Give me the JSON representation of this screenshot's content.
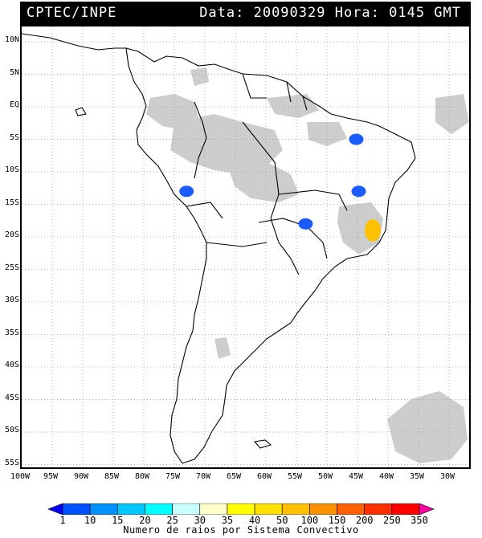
{
  "header": {
    "source": "CPTEC/INPE",
    "datetime": "Data: 20090329 Hora: 0145 GMT"
  },
  "map": {
    "lat_labels": [
      "10N",
      "5N",
      "EQ",
      "5S",
      "10S",
      "15S",
      "20S",
      "25S",
      "30S",
      "35S",
      "40S",
      "45S",
      "50S",
      "55S"
    ],
    "lon_labels": [
      "100W",
      "95W",
      "90W",
      "85W",
      "80W",
      "75W",
      "70W",
      "65W",
      "60W",
      "55W",
      "50W",
      "45W",
      "40W",
      "35W",
      "30W"
    ],
    "grid": true,
    "cloud_color": "#c8c8c8",
    "coast_color": "#000000"
  },
  "lightning_clusters": [
    {
      "lon": -45.2,
      "lat": -5.0,
      "class": "1-10",
      "color": "#1a5cff"
    },
    {
      "lon": -73.0,
      "lat": -13.0,
      "class": "1-10",
      "color": "#1a5cff"
    },
    {
      "lon": -44.8,
      "lat": -13.0,
      "class": "1-10",
      "color": "#1a5cff"
    },
    {
      "lon": -53.5,
      "lat": -18.0,
      "class": "1-10",
      "color": "#1a5cff"
    },
    {
      "lon": -42.5,
      "lat": -19.0,
      "class": "40-50",
      "color": "#ffc000"
    }
  ],
  "colorbar": {
    "caption": "Numero de raios por Sistema Convectivo",
    "labels": [
      "1",
      "10",
      "15",
      "20",
      "25",
      "30",
      "35",
      "40",
      "50",
      "100",
      "150",
      "200",
      "250",
      "350"
    ],
    "colors": [
      "#0000ff",
      "#0050ff",
      "#0090ff",
      "#00c8ff",
      "#00ffff",
      "#c8ffff",
      "#ffffc8",
      "#ffff00",
      "#ffe000",
      "#ffc000",
      "#ff9000",
      "#ff6000",
      "#ff3000",
      "#ff0000",
      "#ff00a0"
    ]
  }
}
